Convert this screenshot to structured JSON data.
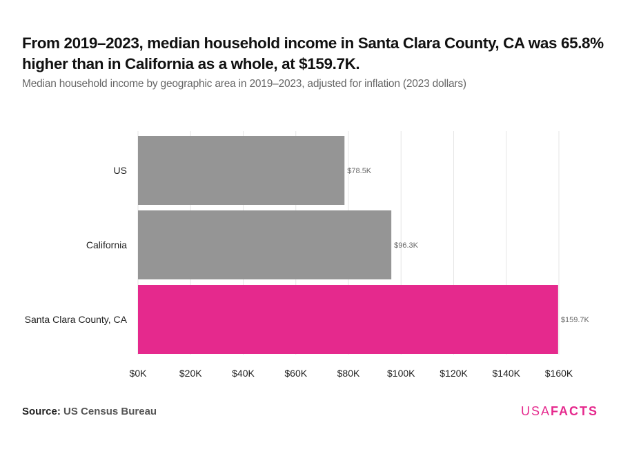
{
  "title": "From 2019–2023, median household income in Santa Clara County, CA was 65.8% higher than in California as a whole, at $159.7K.",
  "subtitle": "Median household income by geographic area in 2019–2023, adjusted for inflation (2023 dollars)",
  "source_label": "Source:",
  "source_value": "US Census Bureau",
  "logo": {
    "part1": "USA",
    "part2": "FACTS"
  },
  "colors": {
    "accent": "#e5298d",
    "bar": "#959595"
  },
  "chart_data": {
    "type": "bar",
    "orientation": "horizontal",
    "categories": [
      "US",
      "California",
      "Santa Clara County, CA"
    ],
    "values": [
      78.5,
      96.3,
      159.7
    ],
    "data_labels": [
      "$78.5K",
      "$96.3K",
      "$159.7K"
    ],
    "unit": "thousand dollars",
    "xlim": [
      0,
      160
    ],
    "xticks": [
      0,
      20,
      40,
      60,
      80,
      100,
      120,
      140,
      160
    ],
    "xtick_labels": [
      "$0K",
      "$20K",
      "$40K",
      "$60K",
      "$80K",
      "$100K",
      "$120K",
      "$140K",
      "$160K"
    ],
    "bar_colors": [
      "#959595",
      "#959595",
      "#e5298d"
    ],
    "grid": true,
    "title": "",
    "xlabel": "",
    "ylabel": ""
  }
}
